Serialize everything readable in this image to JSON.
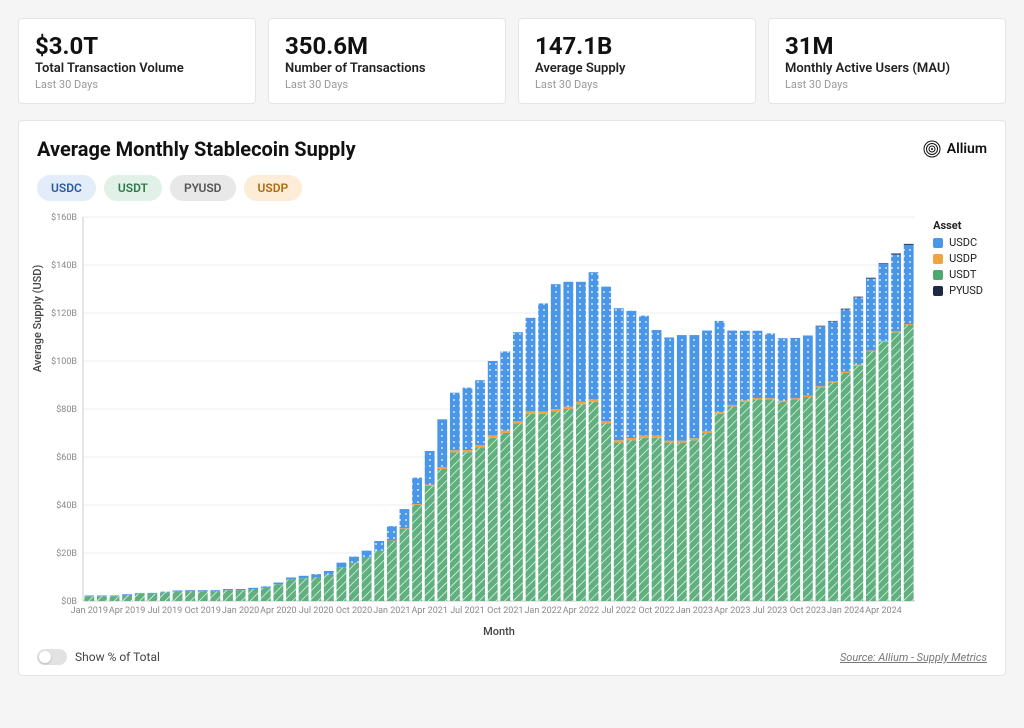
{
  "kpis": [
    {
      "value": "$3.0T",
      "label": "Total Transaction Volume",
      "sub": "Last 30 Days"
    },
    {
      "value": "350.6M",
      "label": "Number of Transactions",
      "sub": "Last 30 Days"
    },
    {
      "value": "147.1B",
      "label": "Average Supply",
      "sub": "Last 30 Days"
    },
    {
      "value": "31M",
      "label": "Monthly Active Users (MAU)",
      "sub": "Last 30 Days"
    }
  ],
  "panel": {
    "title": "Average Monthly Stablecoin Supply",
    "brand": "Allium",
    "pills": [
      {
        "label": "USDC",
        "bg": "#e3edf9",
        "fg": "#2a5aa0"
      },
      {
        "label": "USDT",
        "bg": "#e2f1e8",
        "fg": "#2b7a4b"
      },
      {
        "label": "PYUSD",
        "bg": "#e8e8e8",
        "fg": "#555555"
      },
      {
        "label": "USDP",
        "bg": "#fdecd6",
        "fg": "#b06a12"
      }
    ],
    "footer_toggle": "Show % of Total",
    "source": "Source: Allium - Supply Metrics"
  },
  "chart": {
    "type": "stacked-bar",
    "y_label": "Average Supply (USD)",
    "x_label": "Month",
    "y_ticks": [
      0,
      20,
      40,
      60,
      80,
      100,
      120,
      140,
      160
    ],
    "y_tick_prefix": "$",
    "y_tick_suffix": "B",
    "ylim": [
      0,
      160
    ],
    "grid_color": "#ececec",
    "axis_color": "#cccccc",
    "background": "#ffffff",
    "x_ticks": [
      "Jan 2019",
      "Apr 2019",
      "Jul 2019",
      "Oct 2019",
      "Jan 2020",
      "Apr 2020",
      "Jul 2020",
      "Oct 2020",
      "Jan 2021",
      "Apr 2021",
      "Jul 2021",
      "Oct 2021",
      "Jan 2022",
      "Apr 2022",
      "Jul 2022",
      "Oct 2022",
      "Jan 2023",
      "Apr 2023",
      "Jul 2023",
      "Oct 2023",
      "Jan 2024",
      "Apr 2024"
    ],
    "x_tick_step": 3,
    "series_order": [
      "USDT",
      "USDP",
      "USDC",
      "PYUSD"
    ],
    "series_meta": {
      "USDC": {
        "color": "#4a96e8",
        "pattern": "dots"
      },
      "USDP": {
        "color": "#f0a43f",
        "pattern": "none"
      },
      "USDT": {
        "color": "#4fa86f",
        "pattern": "hatch"
      },
      "PYUSD": {
        "color": "#1e2a44",
        "pattern": "none"
      }
    },
    "legend_order": [
      "USDC",
      "USDP",
      "USDT",
      "PYUSD"
    ],
    "legend_title": "Asset",
    "categories": [
      "Jan 2019",
      "Feb 2019",
      "Mar 2019",
      "Apr 2019",
      "May 2019",
      "Jun 2019",
      "Jul 2019",
      "Aug 2019",
      "Sep 2019",
      "Oct 2019",
      "Nov 2019",
      "Dec 2019",
      "Jan 2020",
      "Feb 2020",
      "Mar 2020",
      "Apr 2020",
      "May 2020",
      "Jun 2020",
      "Jul 2020",
      "Aug 2020",
      "Sep 2020",
      "Oct 2020",
      "Nov 2020",
      "Dec 2020",
      "Jan 2021",
      "Feb 2021",
      "Mar 2021",
      "Apr 2021",
      "May 2021",
      "Jun 2021",
      "Jul 2021",
      "Aug 2021",
      "Sep 2021",
      "Oct 2021",
      "Nov 2021",
      "Dec 2021",
      "Jan 2022",
      "Feb 2022",
      "Mar 2022",
      "Apr 2022",
      "May 2022",
      "Jun 2022",
      "Jul 2022",
      "Aug 2022",
      "Sep 2022",
      "Oct 2022",
      "Nov 2022",
      "Dec 2022",
      "Jan 2023",
      "Feb 2023",
      "Mar 2023",
      "Apr 2023",
      "May 2023",
      "Jun 2023",
      "Jul 2023",
      "Aug 2023",
      "Sep 2023",
      "Oct 2023",
      "Nov 2023",
      "Dec 2023",
      "Jan 2024",
      "Feb 2024",
      "Mar 2024",
      "Apr 2024",
      "May 2024",
      "Jun 2024"
    ],
    "data": {
      "USDT": [
        2,
        2,
        2,
        2.5,
        3,
        3,
        3.5,
        4,
        4,
        4,
        4,
        4.5,
        4.5,
        5,
        5.5,
        7,
        9,
        9.5,
        10,
        11,
        14,
        16,
        18,
        21,
        25,
        30,
        40,
        48,
        55,
        62,
        62,
        64,
        68,
        70,
        74,
        78,
        78,
        79,
        80,
        82,
        83,
        74,
        66,
        67,
        68,
        68,
        66,
        66,
        67,
        70,
        78,
        81,
        83,
        84,
        84,
        83,
        84,
        85,
        89,
        91,
        95,
        98,
        104,
        108,
        112,
        115
      ],
      "USDP": [
        0,
        0,
        0,
        0,
        0,
        0,
        0,
        0,
        0,
        0,
        0,
        0,
        0,
        0,
        0,
        0,
        0,
        0,
        0,
        0,
        0,
        0,
        0,
        0,
        0.2,
        0.3,
        0.4,
        0.5,
        0.7,
        0.8,
        0.9,
        1.0,
        1.0,
        1.0,
        1.0,
        1.0,
        1.0,
        1.0,
        1.0,
        1.0,
        1.0,
        1.0,
        1.0,
        0.9,
        0.9,
        0.9,
        0.8,
        0.8,
        0.8,
        0.7,
        0.7,
        0.7,
        0.6,
        0.6,
        0.5,
        0.5,
        0.5,
        0.5,
        0.5,
        0.5,
        0.5,
        0.5,
        0.4,
        0.4,
        0.4,
        0.4
      ],
      "USDC": [
        0.3,
        0.3,
        0.3,
        0.3,
        0.3,
        0.4,
        0.4,
        0.4,
        0.5,
        0.5,
        0.5,
        0.5,
        0.5,
        0.5,
        0.6,
        0.7,
        0.8,
        1.0,
        1.2,
        1.5,
        2,
        2.5,
        3,
        4,
        6,
        8,
        11,
        14,
        20,
        24,
        26,
        27,
        31,
        33,
        37,
        39,
        45,
        52,
        52,
        50,
        53,
        56,
        55,
        53,
        50,
        44,
        43,
        44,
        43,
        42,
        38,
        31,
        29,
        28,
        27,
        26,
        25,
        25,
        25,
        25,
        26,
        28,
        30,
        32,
        32,
        33
      ],
      "PYUSD": [
        0,
        0,
        0,
        0,
        0,
        0,
        0,
        0,
        0,
        0,
        0,
        0,
        0,
        0,
        0,
        0,
        0,
        0,
        0,
        0,
        0,
        0,
        0,
        0,
        0,
        0,
        0,
        0,
        0,
        0,
        0,
        0,
        0,
        0,
        0,
        0,
        0,
        0,
        0,
        0,
        0,
        0,
        0,
        0,
        0,
        0,
        0,
        0,
        0,
        0,
        0,
        0,
        0,
        0,
        0,
        0,
        0.1,
        0.1,
        0.2,
        0.2,
        0.3,
        0.3,
        0.3,
        0.3,
        0.4,
        0.4
      ]
    }
  }
}
